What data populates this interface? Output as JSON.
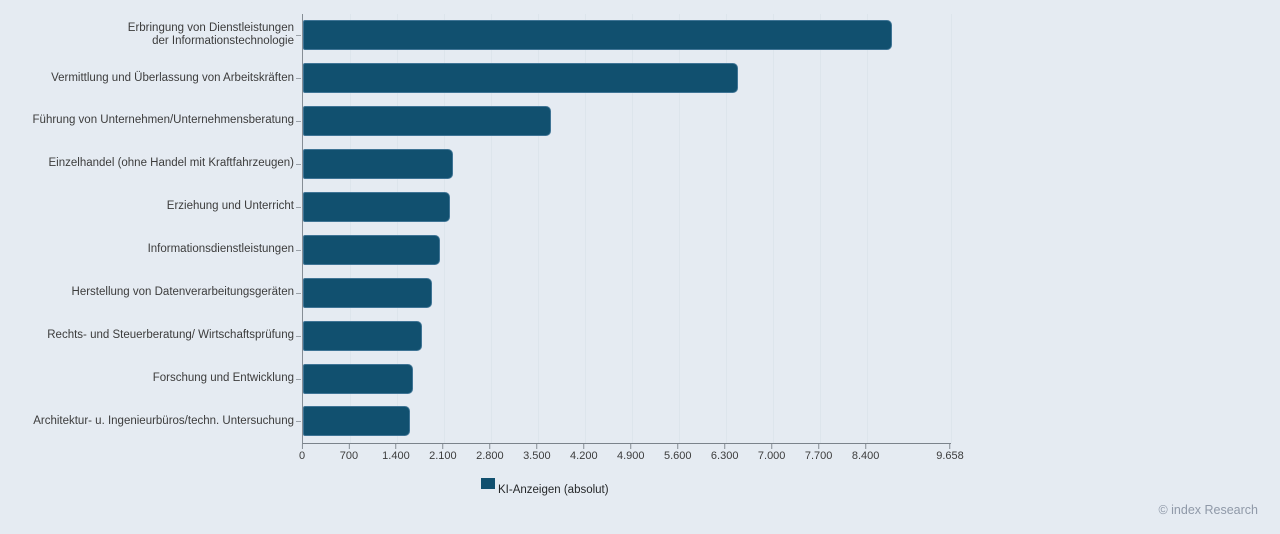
{
  "page": {
    "background_color": "#e5ebf2"
  },
  "chart_data": {
    "type": "bar",
    "orientation": "horizontal",
    "title": "",
    "series_name": "KI-Anzeigen (absolut)",
    "categories": [
      "Erbringung von Dienstleistungen\nder Informationstechnologie",
      "Vermittlung und Überlassung von Arbeitskräften",
      "Führung von Unternehmen/Unternehmensberatung",
      "Einzelhandel (ohne Handel mit Kraftfahrzeugen)",
      "Erziehung und Unterricht",
      "Informationsdienstleistungen",
      "Herstellung von Datenverarbeitungsgeräten",
      "Rechts- und Steuerberatung/ Wirtschaftsprüfung",
      "Forschung und Entwicklung",
      "Architektur- u. Ingenieurbüros/techn. Untersuchung"
    ],
    "values": [
      8780,
      6480,
      3700,
      2240,
      2190,
      2040,
      1930,
      1780,
      1640,
      1590
    ],
    "xlim": [
      0,
      9658
    ],
    "x_ticks": [
      0,
      700,
      1400,
      2100,
      2800,
      3500,
      4200,
      4900,
      5600,
      6300,
      7000,
      7700,
      8400,
      9658
    ],
    "x_tick_labels": [
      "0",
      "700",
      "1.400",
      "2.100",
      "2.800",
      "3.500",
      "4.200",
      "4.900",
      "5.600",
      "6.300",
      "7.000",
      "7.700",
      "8.400",
      "9.658"
    ],
    "grid": true,
    "grid_color": "#dde5ec",
    "legend_position": "bottom",
    "bar_color": "#11506f",
    "bar_border_color": "#3f7495"
  },
  "footer": {
    "copyright": "© index Research"
  }
}
